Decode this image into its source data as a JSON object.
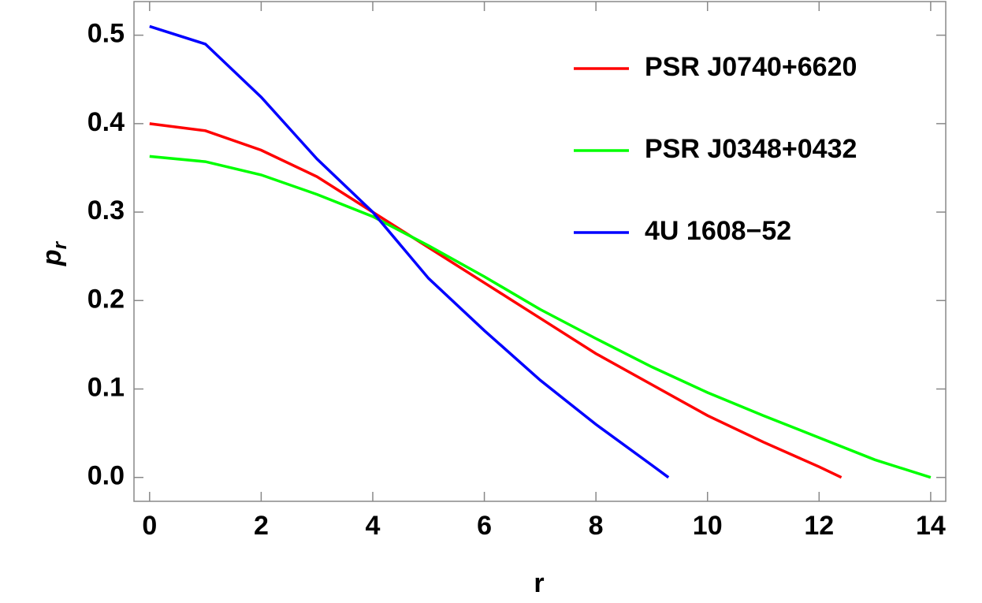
{
  "chart_data": {
    "type": "line",
    "xlabel": "r",
    "ylabel": "p",
    "ylabel_subscript": "r",
    "xlim": [
      -0.28,
      14.27
    ],
    "ylim": [
      -0.027,
      0.538
    ],
    "xticks": [
      0,
      2,
      4,
      6,
      8,
      10,
      12,
      14
    ],
    "yticks": [
      {
        "value": 0,
        "label": "0.0"
      },
      0.1,
      0.2,
      0.3,
      0.4,
      0.5
    ],
    "legend": "upper right",
    "series": [
      {
        "name": "PSR J0740+6620",
        "color": "#ff0000",
        "x": [
          0,
          1,
          2,
          3,
          4,
          5,
          6,
          7,
          8,
          9,
          10,
          11,
          12,
          12.4
        ],
        "values": [
          0.4,
          0.392,
          0.37,
          0.34,
          0.3,
          0.26,
          0.22,
          0.18,
          0.14,
          0.105,
          0.07,
          0.04,
          0.012,
          0
        ]
      },
      {
        "name": "PSR J0348+0432",
        "color": "#00ff00",
        "x": [
          0,
          1,
          2,
          3,
          4,
          5,
          6,
          7,
          8,
          9,
          10,
          11,
          12,
          13,
          14
        ],
        "values": [
          0.363,
          0.357,
          0.342,
          0.32,
          0.295,
          0.262,
          0.227,
          0.19,
          0.157,
          0.125,
          0.096,
          0.07,
          0.045,
          0.02,
          0
        ]
      },
      {
        "name": "4U 1608−52",
        "color": "#0000ff",
        "x": [
          0,
          1,
          2,
          3,
          4,
          5,
          6,
          7,
          8,
          9,
          9.3
        ],
        "values": [
          0.51,
          0.49,
          0.43,
          0.36,
          0.3,
          0.225,
          0.166,
          0.11,
          0.06,
          0.014,
          0
        ]
      }
    ]
  }
}
